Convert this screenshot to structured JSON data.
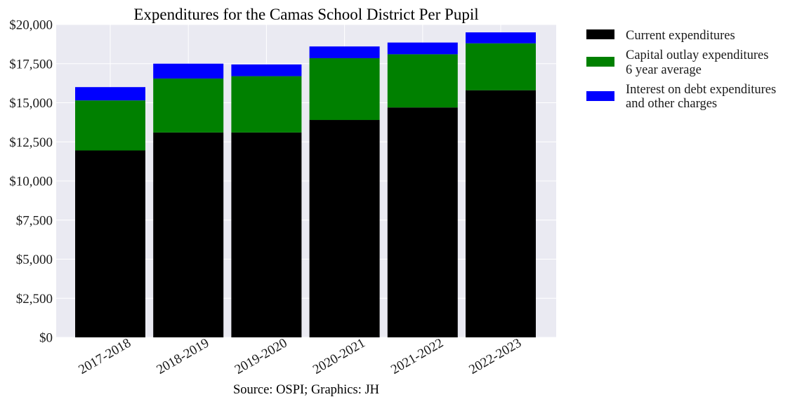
{
  "chart_data": {
    "type": "bar",
    "stacked": true,
    "title": "Expenditures for the Camas School District Per Pupil",
    "xlabel": "",
    "ylabel": "",
    "ylim": [
      0,
      20000
    ],
    "yticks": [
      0,
      2500,
      5000,
      7500,
      10000,
      12500,
      15000,
      17500,
      20000
    ],
    "ytick_labels": [
      "$0",
      "$2,500",
      "$5,000",
      "$7,500",
      "$10,000",
      "$12,500",
      "$15,000",
      "$17,500",
      "$20,000"
    ],
    "categories": [
      "2017-2018",
      "2018-2019",
      "2019-2020",
      "2020-2021",
      "2021-2022",
      "2022-2023"
    ],
    "series": [
      {
        "name": "Current expenditures",
        "color": "#000000",
        "values": [
          11950,
          13100,
          13100,
          13900,
          14700,
          15800
        ]
      },
      {
        "name": "Capital outlay expenditures 6 year average",
        "label_lines": [
          "Capital outlay expenditures",
          "6 year average"
        ],
        "color": "#008000",
        "values": [
          3200,
          3450,
          3600,
          3950,
          3400,
          3000
        ]
      },
      {
        "name": "Interest on debt expenditures and other charges",
        "label_lines": [
          "Interest on debt expenditures",
          "and other charges"
        ],
        "color": "#0000ff",
        "values": [
          850,
          950,
          750,
          750,
          750,
          700
        ]
      }
    ],
    "grid": true,
    "legend_position": "outside-top-right",
    "source": "Source: OSPI; Graphics: JH"
  }
}
